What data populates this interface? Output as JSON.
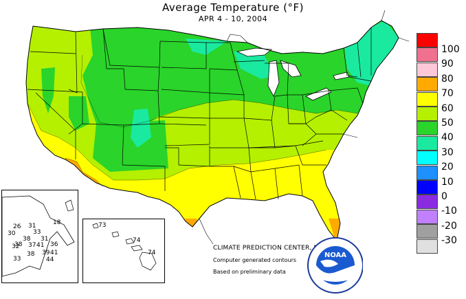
{
  "title": "Average Temperature (°F)",
  "subtitle": "APR 4 - 10, 2004",
  "legend": [
    {
      "label": "100",
      "color": "#ff0000"
    },
    {
      "label": "90",
      "color": "#f07090"
    },
    {
      "label": "80",
      "color": "#ffc8d8"
    },
    {
      "label": "70",
      "color": "#ffaa00"
    },
    {
      "label": "60",
      "color": "#ffff00"
    },
    {
      "label": "50",
      "color": "#b4f000"
    },
    {
      "label": "40",
      "color": "#2ad42a"
    },
    {
      "label": "30",
      "color": "#1aeaa0"
    },
    {
      "label": "20",
      "color": "#00ffff"
    },
    {
      "label": "10",
      "color": "#1e90ff"
    },
    {
      "label": "0",
      "color": "#0000ff"
    },
    {
      "label": "-10",
      "color": "#8a2be2"
    },
    {
      "label": "-20",
      "color": "#c080ff"
    },
    {
      "label": "-30",
      "color": "#a0a0a0"
    },
    {
      "label": "",
      "color": "#e0e0e0"
    }
  ],
  "credits": {
    "line1": "CLIMATE PREDICTION CENTER, NOAA",
    "line2": "Computer generated contours",
    "line3": "Based on preliminary data"
  },
  "logo_text": "NOAA",
  "alaska_values": [
    "26",
    "31",
    "30",
    "33",
    "38",
    "38",
    "31",
    "37",
    "41",
    "36",
    "32",
    "38",
    "39",
    "41",
    "33",
    "44",
    "18"
  ],
  "hawaii_values": [
    "73",
    "74",
    "74"
  ]
}
